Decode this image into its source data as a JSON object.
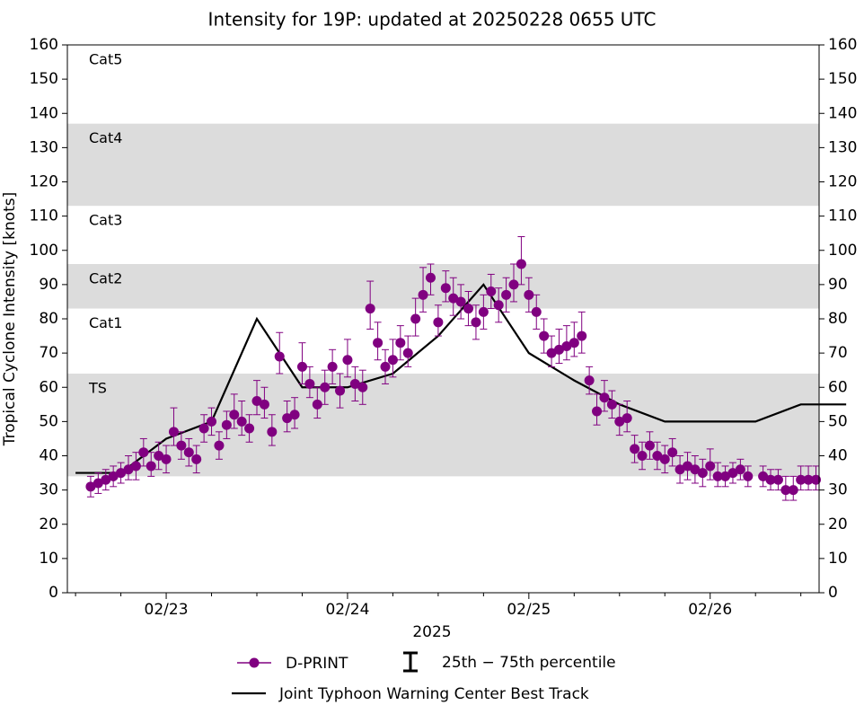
{
  "chart_data": {
    "type": "scatter",
    "title": "Intensity for 19P: updated at 20250228 0655 UTC",
    "ylabel": "Tropical Cyclone Intensity [knots]",
    "xlabel": "2025",
    "xlim": [
      "2025-02-22T10:55",
      "2025-02-26T14:25"
    ],
    "xticks": [
      {
        "value": "2025-02-23T00:00",
        "label": "02/23"
      },
      {
        "value": "2025-02-24T00:00",
        "label": "02/24"
      },
      {
        "value": "2025-02-25T00:00",
        "label": "02/25"
      },
      {
        "value": "2025-02-26T00:00",
        "label": "02/26"
      }
    ],
    "xminorticks": [
      "2025-02-22T12:00",
      "2025-02-22T18:00",
      "2025-02-23T06:00",
      "2025-02-23T12:00",
      "2025-02-23T18:00",
      "2025-02-24T06:00",
      "2025-02-24T12:00",
      "2025-02-24T18:00",
      "2025-02-25T06:00",
      "2025-02-25T12:00",
      "2025-02-25T18:00",
      "2025-02-26T06:00",
      "2025-02-26T12:00"
    ],
    "ylim": [
      0,
      160
    ],
    "yticks": [
      0,
      10,
      20,
      30,
      40,
      50,
      60,
      70,
      80,
      90,
      100,
      110,
      120,
      130,
      140,
      150,
      160
    ],
    "y2lim": [
      0,
      160
    ],
    "y2ticks": [
      0,
      10,
      20,
      30,
      40,
      50,
      60,
      70,
      80,
      90,
      100,
      110,
      120,
      130,
      140,
      150,
      160
    ],
    "bands": [
      {
        "name": "TS",
        "from": 34,
        "to": 64,
        "shaded": true
      },
      {
        "name": "Cat1",
        "from": 64,
        "to": 83,
        "shaded": false
      },
      {
        "name": "Cat2",
        "from": 83,
        "to": 96,
        "shaded": true
      },
      {
        "name": "Cat3",
        "from": 96,
        "to": 113,
        "shaded": false
      },
      {
        "name": "Cat4",
        "from": 113,
        "to": 137,
        "shaded": true
      },
      {
        "name": "Cat5",
        "from": 137,
        "to": 160,
        "shaded": false
      }
    ],
    "band_color": "#dcdcdc",
    "errorbar_legend": "25th − 75th percentile",
    "series": [
      {
        "name": "D-PRINT",
        "color": "#800080",
        "x": [
          "2025-02-22T14:00",
          "2025-02-22T15:00",
          "2025-02-22T16:00",
          "2025-02-22T17:00",
          "2025-02-22T18:00",
          "2025-02-22T19:00",
          "2025-02-22T20:00",
          "2025-02-22T21:00",
          "2025-02-22T22:00",
          "2025-02-22T23:00",
          "2025-02-23T00:00",
          "2025-02-23T01:00",
          "2025-02-23T02:00",
          "2025-02-23T03:00",
          "2025-02-23T04:00",
          "2025-02-23T05:00",
          "2025-02-23T06:00",
          "2025-02-23T07:00",
          "2025-02-23T08:00",
          "2025-02-23T09:00",
          "2025-02-23T10:00",
          "2025-02-23T11:00",
          "2025-02-23T12:00",
          "2025-02-23T13:00",
          "2025-02-23T14:00",
          "2025-02-23T15:00",
          "2025-02-23T16:00",
          "2025-02-23T17:00",
          "2025-02-23T18:00",
          "2025-02-23T19:00",
          "2025-02-23T20:00",
          "2025-02-23T21:00",
          "2025-02-23T22:00",
          "2025-02-23T23:00",
          "2025-02-24T00:00",
          "2025-02-24T01:00",
          "2025-02-24T02:00",
          "2025-02-24T03:00",
          "2025-02-24T04:00",
          "2025-02-24T05:00",
          "2025-02-24T06:00",
          "2025-02-24T07:00",
          "2025-02-24T08:00",
          "2025-02-24T09:00",
          "2025-02-24T10:00",
          "2025-02-24T11:00",
          "2025-02-24T12:00",
          "2025-02-24T13:00",
          "2025-02-24T14:00",
          "2025-02-24T15:00",
          "2025-02-24T16:00",
          "2025-02-24T17:00",
          "2025-02-24T18:00",
          "2025-02-24T19:00",
          "2025-02-24T20:00",
          "2025-02-24T21:00",
          "2025-02-24T22:00",
          "2025-02-24T23:00",
          "2025-02-25T00:00",
          "2025-02-25T01:00",
          "2025-02-25T02:00",
          "2025-02-25T03:00",
          "2025-02-25T04:00",
          "2025-02-25T05:00",
          "2025-02-25T06:00",
          "2025-02-25T07:00",
          "2025-02-25T08:00",
          "2025-02-25T09:00",
          "2025-02-25T10:00",
          "2025-02-25T11:00",
          "2025-02-25T12:00",
          "2025-02-25T13:00",
          "2025-02-25T14:00",
          "2025-02-25T15:00",
          "2025-02-25T16:00",
          "2025-02-25T17:00",
          "2025-02-25T18:00",
          "2025-02-25T19:00",
          "2025-02-25T20:00",
          "2025-02-25T21:00",
          "2025-02-25T22:00",
          "2025-02-25T23:00",
          "2025-02-26T00:00",
          "2025-02-26T01:00",
          "2025-02-26T02:00",
          "2025-02-26T03:00",
          "2025-02-26T04:00",
          "2025-02-26T05:00",
          "2025-02-26T07:00",
          "2025-02-26T08:00",
          "2025-02-26T09:00",
          "2025-02-26T10:00",
          "2025-02-26T11:00",
          "2025-02-26T12:00",
          "2025-02-26T13:00",
          "2025-02-26T14:00"
        ],
        "values": [
          31,
          32,
          33,
          34,
          35,
          36,
          37,
          41,
          37,
          40,
          39,
          47,
          43,
          41,
          39,
          48,
          50,
          43,
          49,
          52,
          50,
          48,
          56,
          55,
          47,
          69,
          51,
          52,
          66,
          61,
          55,
          60,
          66,
          59,
          68,
          61,
          60,
          83,
          73,
          66,
          68,
          73,
          70,
          80,
          87,
          92,
          79,
          89,
          86,
          85,
          83,
          79,
          82,
          88,
          84,
          87,
          90,
          96,
          87,
          82,
          75,
          70,
          71,
          72,
          73,
          75,
          62,
          53,
          57,
          55,
          50,
          51,
          42,
          40,
          43,
          40,
          39,
          41,
          36,
          37,
          36,
          35,
          37,
          34,
          34,
          35,
          36,
          34,
          34,
          33,
          33,
          30,
          30,
          33,
          33,
          33
        ],
        "lower": [
          28,
          29,
          30,
          31,
          32,
          33,
          33,
          37,
          34,
          36,
          35,
          43,
          39,
          37,
          35,
          44,
          46,
          39,
          45,
          48,
          46,
          44,
          52,
          51,
          43,
          64,
          47,
          48,
          61,
          57,
          51,
          55,
          61,
          54,
          63,
          56,
          55,
          77,
          68,
          61,
          63,
          68,
          66,
          75,
          82,
          87,
          75,
          85,
          81,
          80,
          78,
          74,
          77,
          83,
          79,
          82,
          85,
          90,
          82,
          77,
          70,
          66,
          67,
          68,
          69,
          70,
          58,
          49,
          53,
          51,
          46,
          47,
          38,
          36,
          39,
          36,
          35,
          37,
          32,
          33,
          32,
          31,
          33,
          31,
          31,
          32,
          33,
          31,
          31,
          30,
          30,
          27,
          27,
          30,
          30,
          30
        ],
        "upper": [
          34,
          35,
          36,
          37,
          38,
          40,
          41,
          45,
          41,
          44,
          43,
          54,
          47,
          45,
          43,
          52,
          54,
          47,
          53,
          58,
          56,
          52,
          62,
          60,
          52,
          76,
          56,
          57,
          73,
          66,
          60,
          65,
          71,
          64,
          74,
          66,
          65,
          91,
          79,
          71,
          74,
          78,
          75,
          86,
          95,
          96,
          84,
          94,
          92,
          90,
          88,
          84,
          87,
          93,
          89,
          92,
          96,
          104,
          92,
          87,
          80,
          75,
          77,
          78,
          79,
          82,
          66,
          58,
          62,
          59,
          55,
          56,
          46,
          44,
          47,
          44,
          43,
          45,
          40,
          41,
          40,
          39,
          42,
          38,
          37,
          38,
          39,
          37,
          37,
          36,
          36,
          34,
          34,
          37,
          37,
          37
        ]
      },
      {
        "name": "Joint Typhoon Warning Center Best Track",
        "color": "#000000",
        "x": [
          "2025-02-22T12:00",
          "2025-02-22T18:00",
          "2025-02-23T00:00",
          "2025-02-23T06:00",
          "2025-02-23T12:00",
          "2025-02-23T18:00",
          "2025-02-24T00:00",
          "2025-02-24T06:00",
          "2025-02-24T12:00",
          "2025-02-24T18:00",
          "2025-02-25T00:00",
          "2025-02-25T06:00",
          "2025-02-25T12:00",
          "2025-02-25T18:00",
          "2025-02-26T00:00",
          "2025-02-26T06:00",
          "2025-02-26T12:00",
          "2025-02-26T18:00"
        ],
        "values": [
          35,
          35,
          45,
          50,
          80,
          60,
          60,
          64,
          75,
          90,
          70,
          62,
          55,
          50,
          50,
          50,
          55,
          55
        ]
      }
    ]
  }
}
